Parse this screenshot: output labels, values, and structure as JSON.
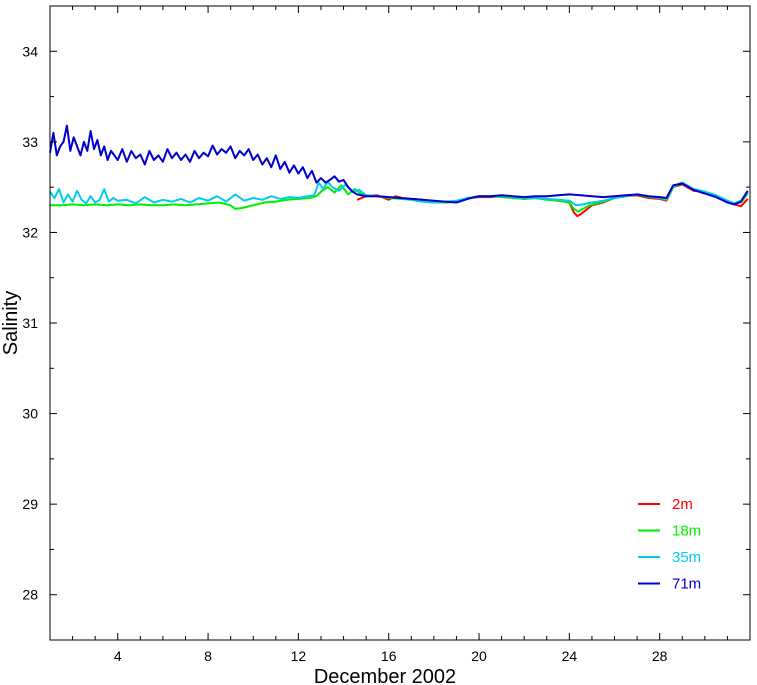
{
  "chart_data": {
    "type": "line",
    "title": "",
    "xlabel": "December 2002",
    "ylabel": "Salinity",
    "xlim": [
      1,
      32
    ],
    "ylim": [
      27.5,
      34.5
    ],
    "x_ticks": [
      4,
      8,
      12,
      16,
      20,
      24,
      28
    ],
    "x_tick_labels": [
      "4",
      "8",
      "12",
      "16",
      "20",
      "24",
      "28"
    ],
    "y_ticks": [
      28,
      29,
      30,
      31,
      32,
      33,
      34
    ],
    "y_tick_labels": [
      "28",
      "29",
      "30",
      "31",
      "32",
      "33",
      "34"
    ],
    "grid": false,
    "legend_position": "bottom-right",
    "series": [
      {
        "name": "2m",
        "color": "#ff0000",
        "x": [
          14.6,
          15.0,
          15.5,
          15.8,
          16.0,
          16.3,
          16.6,
          17.0,
          17.5,
          18.0,
          18.5,
          19.0,
          19.5,
          20.0,
          20.5,
          21.0,
          21.5,
          22.0,
          22.5,
          23.0,
          23.5,
          24.0,
          24.2,
          24.35,
          24.5,
          24.8,
          25.0,
          25.5,
          26.0,
          26.5,
          27.0,
          27.5,
          28.0,
          28.3,
          28.6,
          29.0,
          29.5,
          30.0,
          30.5,
          31.0,
          31.3,
          31.6,
          31.9
        ],
        "y": [
          32.36,
          32.4,
          32.41,
          32.38,
          32.36,
          32.4,
          32.38,
          32.37,
          32.36,
          32.34,
          32.33,
          32.34,
          32.38,
          32.39,
          32.39,
          32.4,
          32.39,
          32.37,
          32.38,
          32.37,
          32.35,
          32.33,
          32.22,
          32.18,
          32.2,
          32.26,
          32.3,
          32.33,
          32.38,
          32.4,
          32.41,
          32.38,
          32.37,
          32.35,
          32.5,
          32.53,
          32.46,
          32.45,
          32.4,
          32.34,
          32.31,
          32.29,
          32.37
        ]
      },
      {
        "name": "18m",
        "color": "#00ee00",
        "x": [
          1.0,
          1.5,
          2.0,
          2.5,
          3.0,
          3.5,
          4.0,
          4.5,
          5.0,
          5.5,
          6.0,
          6.5,
          7.0,
          7.5,
          8.0,
          8.5,
          9.0,
          9.2,
          9.5,
          10.0,
          10.5,
          11.0,
          11.5,
          12.0,
          12.5,
          12.8,
          13.0,
          13.3,
          13.6,
          13.9,
          14.2,
          14.5,
          14.8,
          15.0,
          15.5,
          16.0,
          16.5,
          17.0,
          17.5,
          18.0,
          18.5,
          19.0,
          19.5,
          20.0,
          20.5,
          21.0,
          21.5,
          22.0,
          22.5,
          23.0,
          23.5,
          24.0,
          24.2,
          24.4,
          24.6,
          24.9,
          25.2,
          25.5,
          26.0,
          26.5,
          27.0,
          27.5,
          28.0,
          28.3,
          28.6,
          29.0,
          29.5,
          30.0,
          30.5,
          31.0,
          31.3,
          31.6,
          31.9
        ],
        "y": [
          32.3,
          32.3,
          32.31,
          32.3,
          32.31,
          32.3,
          32.31,
          32.3,
          32.31,
          32.3,
          32.3,
          32.31,
          32.3,
          32.31,
          32.32,
          32.33,
          32.3,
          32.26,
          32.27,
          32.3,
          32.33,
          32.34,
          32.36,
          32.37,
          32.38,
          32.4,
          32.45,
          32.5,
          32.44,
          32.52,
          32.42,
          32.48,
          32.42,
          32.41,
          32.4,
          32.38,
          32.37,
          32.36,
          32.34,
          32.33,
          32.33,
          32.34,
          32.38,
          32.4,
          32.4,
          32.39,
          32.38,
          32.37,
          32.38,
          32.36,
          32.35,
          32.33,
          32.26,
          32.23,
          32.26,
          32.3,
          32.32,
          32.34,
          32.38,
          32.4,
          32.42,
          32.39,
          32.38,
          32.36,
          32.5,
          32.55,
          32.48,
          32.45,
          32.41,
          32.35,
          32.32,
          32.33,
          32.43
        ]
      },
      {
        "name": "35m",
        "color": "#00ccee",
        "x": [
          1.0,
          1.2,
          1.4,
          1.6,
          1.8,
          2.0,
          2.2,
          2.4,
          2.6,
          2.8,
          3.0,
          3.2,
          3.4,
          3.6,
          3.8,
          4.0,
          4.4,
          4.8,
          5.2,
          5.6,
          6.0,
          6.4,
          6.8,
          7.2,
          7.6,
          8.0,
          8.4,
          8.8,
          9.2,
          9.6,
          10.0,
          10.4,
          10.8,
          11.2,
          11.6,
          12.0,
          12.4,
          12.7,
          12.9,
          13.1,
          13.3,
          13.5,
          13.8,
          14.1,
          14.4,
          14.7,
          15.0,
          15.5,
          16.0,
          16.5,
          17.0,
          17.5,
          18.0,
          18.5,
          19.0,
          19.5,
          20.0,
          20.5,
          21.0,
          21.5,
          22.0,
          22.5,
          23.0,
          23.5,
          24.0,
          24.3,
          24.6,
          25.0,
          25.5,
          26.0,
          26.5,
          27.0,
          27.5,
          28.0,
          28.3,
          28.6,
          29.0,
          29.5,
          30.0,
          30.5,
          31.0,
          31.3,
          31.6,
          31.9
        ],
        "y": [
          32.45,
          32.38,
          32.48,
          32.33,
          32.42,
          32.34,
          32.46,
          32.36,
          32.32,
          32.4,
          32.33,
          32.36,
          32.48,
          32.34,
          32.38,
          32.35,
          32.36,
          32.32,
          32.39,
          32.33,
          32.36,
          32.34,
          32.37,
          32.33,
          32.38,
          32.35,
          32.4,
          32.34,
          32.42,
          32.35,
          32.38,
          32.36,
          32.4,
          32.37,
          32.39,
          32.38,
          32.4,
          32.41,
          32.55,
          32.48,
          32.56,
          32.5,
          32.46,
          32.53,
          32.45,
          32.47,
          32.41,
          32.4,
          32.39,
          32.38,
          32.36,
          32.34,
          32.33,
          32.34,
          32.35,
          32.38,
          32.4,
          32.4,
          32.4,
          32.39,
          32.38,
          32.38,
          32.37,
          32.36,
          32.35,
          32.3,
          32.31,
          32.33,
          32.35,
          32.38,
          32.4,
          32.42,
          32.4,
          32.38,
          32.37,
          32.51,
          32.55,
          32.48,
          32.45,
          32.41,
          32.35,
          32.32,
          32.35,
          32.45
        ]
      },
      {
        "name": "71m",
        "color": "#0000cc",
        "x": [
          1.0,
          1.15,
          1.3,
          1.45,
          1.6,
          1.75,
          1.9,
          2.05,
          2.2,
          2.35,
          2.5,
          2.65,
          2.8,
          2.95,
          3.1,
          3.25,
          3.4,
          3.55,
          3.7,
          3.85,
          4.0,
          4.2,
          4.4,
          4.6,
          4.8,
          5.0,
          5.2,
          5.4,
          5.6,
          5.8,
          6.0,
          6.2,
          6.4,
          6.6,
          6.8,
          7.0,
          7.2,
          7.4,
          7.6,
          7.8,
          8.0,
          8.2,
          8.4,
          8.6,
          8.8,
          9.0,
          9.2,
          9.4,
          9.6,
          9.8,
          10.0,
          10.2,
          10.4,
          10.6,
          10.8,
          11.0,
          11.2,
          11.4,
          11.6,
          11.8,
          12.0,
          12.2,
          12.4,
          12.6,
          12.8,
          13.0,
          13.2,
          13.4,
          13.6,
          13.8,
          14.0,
          14.2,
          14.4,
          14.6,
          14.8,
          15.0,
          15.5,
          16.0,
          16.5,
          17.0,
          17.5,
          18.0,
          18.5,
          19.0,
          19.5,
          20.0,
          20.5,
          21.0,
          21.5,
          22.0,
          22.5,
          23.0,
          23.5,
          24.0,
          24.5,
          25.0,
          25.5,
          26.0,
          26.5,
          27.0,
          27.5,
          28.0,
          28.3,
          28.6,
          29.0,
          29.5,
          30.0,
          30.5,
          31.0,
          31.3,
          31.6,
          31.9
        ],
        "y": [
          32.88,
          33.1,
          32.85,
          32.95,
          33.0,
          33.18,
          32.9,
          33.05,
          32.95,
          32.85,
          33.0,
          32.9,
          33.12,
          32.92,
          33.02,
          32.85,
          32.95,
          32.8,
          32.9,
          32.85,
          32.8,
          32.92,
          32.78,
          32.9,
          32.82,
          32.86,
          32.75,
          32.9,
          32.8,
          32.85,
          32.78,
          32.92,
          32.82,
          32.88,
          32.8,
          32.86,
          32.78,
          32.9,
          32.82,
          32.88,
          32.84,
          32.96,
          32.86,
          32.92,
          32.88,
          32.95,
          32.82,
          32.9,
          32.85,
          32.92,
          32.8,
          32.86,
          32.75,
          32.82,
          32.72,
          32.85,
          32.7,
          32.78,
          32.66,
          32.74,
          32.65,
          32.72,
          32.6,
          32.68,
          32.55,
          32.6,
          32.55,
          32.58,
          32.62,
          32.56,
          32.58,
          32.5,
          32.45,
          32.42,
          32.41,
          32.4,
          32.4,
          32.39,
          32.38,
          32.37,
          32.36,
          32.35,
          32.34,
          32.33,
          32.37,
          32.4,
          32.4,
          32.41,
          32.4,
          32.39,
          32.4,
          32.4,
          32.41,
          32.42,
          32.41,
          32.4,
          32.39,
          32.4,
          32.41,
          32.42,
          32.4,
          32.39,
          32.38,
          32.52,
          32.54,
          32.47,
          32.43,
          32.39,
          32.33,
          32.31,
          32.34,
          32.46
        ]
      }
    ]
  }
}
